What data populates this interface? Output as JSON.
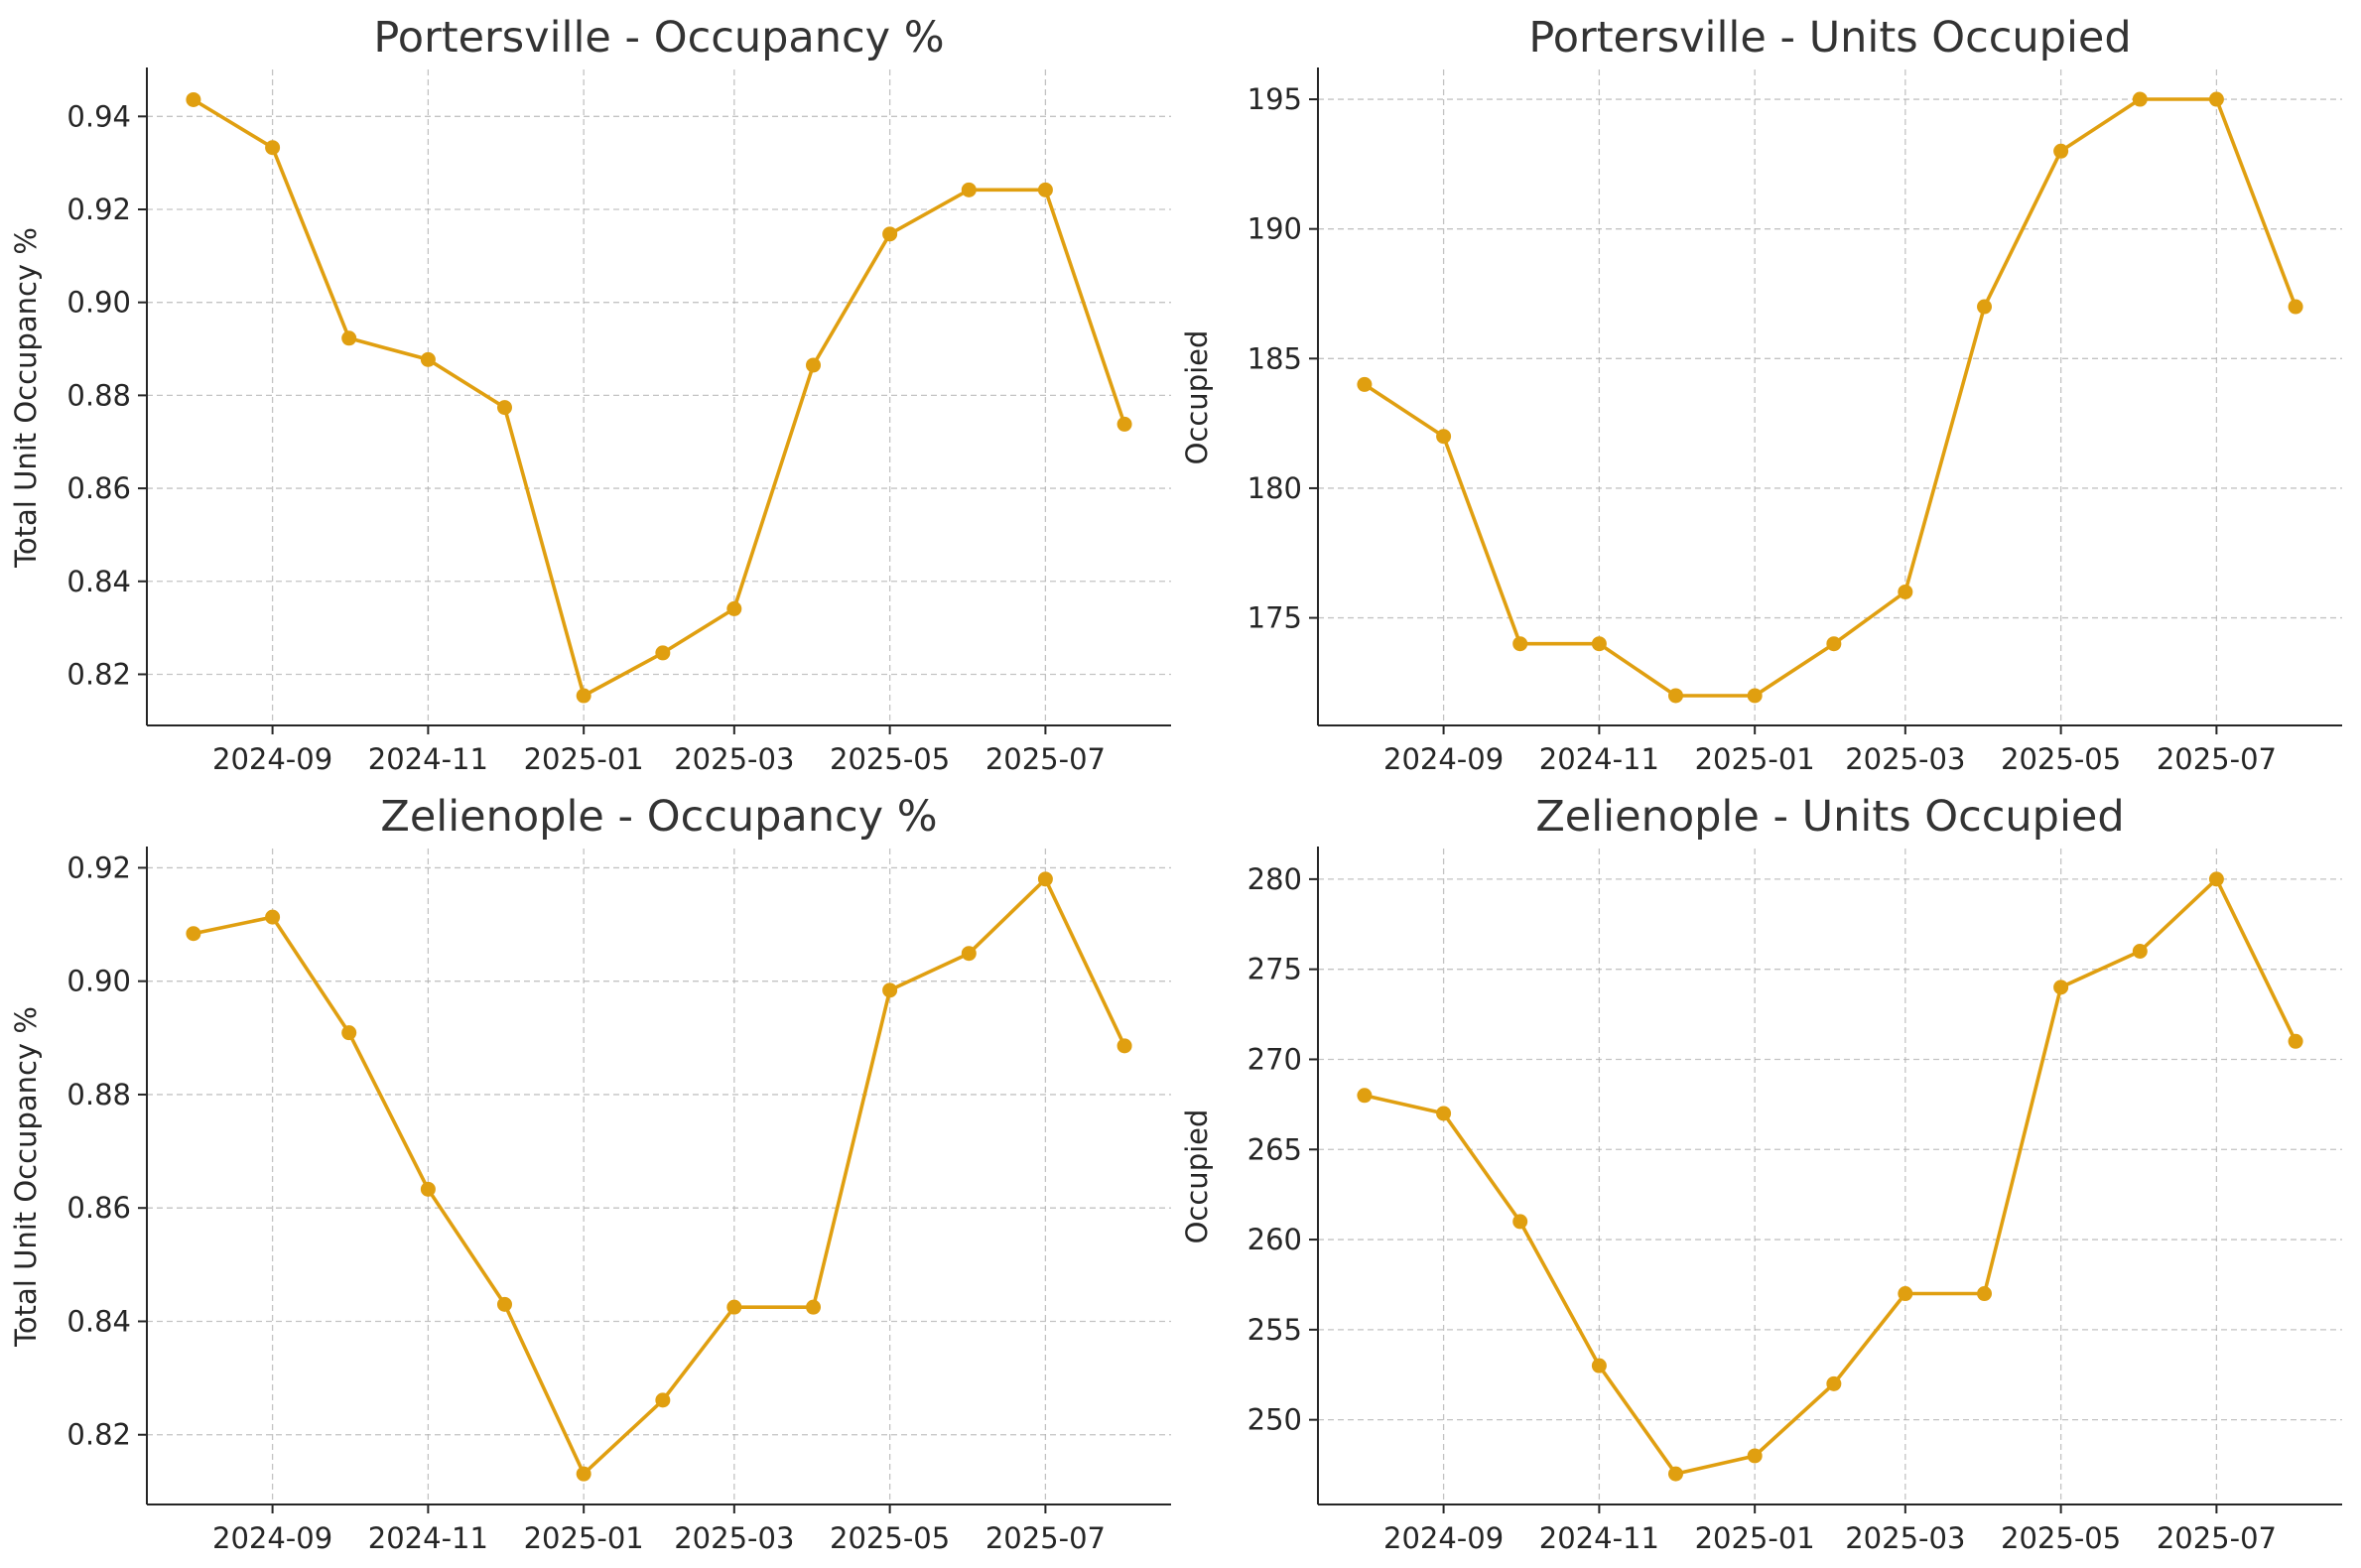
{
  "colors": {
    "series": "#E09F10",
    "text": "#262626",
    "title": "#333333",
    "grid": "#b0b0b0"
  },
  "chart_data": [
    {
      "type": "line",
      "title": "Portersville - Occupancy %",
      "xlabel": "",
      "ylabel": "Total Unit Occupancy %",
      "x": [
        "2024-08-01",
        "2024-09-01",
        "2024-10-01",
        "2024-11-01",
        "2024-12-01",
        "2025-01-01",
        "2025-02-01",
        "2025-03-01",
        "2025-04-01",
        "2025-05-01",
        "2025-06-01",
        "2025-07-01",
        "2025-08-01"
      ],
      "xticks": [
        "2024-09",
        "2024-11",
        "2025-01",
        "2025-03",
        "2025-05",
        "2025-07"
      ],
      "series": [
        {
          "values": [
            0.9436,
            0.9333,
            0.8923,
            0.8877,
            0.8774,
            0.8154,
            0.8246,
            0.8341,
            0.8865,
            0.9147,
            0.9242,
            0.9242,
            0.8738
          ]
        }
      ],
      "yticks": [
        "0.82",
        "0.84",
        "0.86",
        "0.88",
        "0.90",
        "0.92",
        "0.94"
      ],
      "ylim": [
        0.809,
        0.9501
      ],
      "grid": true
    },
    {
      "type": "line",
      "title": "Portersville - Units Occupied",
      "xlabel": "",
      "ylabel": "Occupied",
      "x": [
        "2024-08-01",
        "2024-09-01",
        "2024-10-01",
        "2024-11-01",
        "2024-12-01",
        "2025-01-01",
        "2025-02-01",
        "2025-03-01",
        "2025-04-01",
        "2025-05-01",
        "2025-06-01",
        "2025-07-01",
        "2025-08-01"
      ],
      "xticks": [
        "2024-09",
        "2024-11",
        "2025-01",
        "2025-03",
        "2025-05",
        "2025-07"
      ],
      "series": [
        {
          "values": [
            184,
            182,
            174,
            174,
            172,
            172,
            174,
            176,
            187,
            193,
            195,
            195,
            187
          ]
        }
      ],
      "yticks": [
        "175",
        "180",
        "185",
        "190",
        "195"
      ],
      "ylim": [
        170.85,
        196.15
      ],
      "grid": true
    },
    {
      "type": "line",
      "title": "Zelienople - Occupancy %",
      "xlabel": "",
      "ylabel": "Total Unit Occupancy %",
      "x": [
        "2024-08-01",
        "2024-09-01",
        "2024-10-01",
        "2024-11-01",
        "2024-12-01",
        "2025-01-01",
        "2025-02-01",
        "2025-03-01",
        "2025-04-01",
        "2025-05-01",
        "2025-06-01",
        "2025-07-01",
        "2025-08-01"
      ],
      "xticks": [
        "2024-09",
        "2024-11",
        "2025-01",
        "2025-03",
        "2025-05",
        "2025-07"
      ],
      "series": [
        {
          "values": [
            0.9084,
            0.9113,
            0.8909,
            0.8633,
            0.843,
            0.8131,
            0.8261,
            0.8425,
            0.8425,
            0.8984,
            0.9049,
            0.918,
            0.8886
          ]
        }
      ],
      "yticks": [
        "0.82",
        "0.84",
        "0.86",
        "0.88",
        "0.90",
        "0.92"
      ],
      "ylim": [
        0.8077,
        0.9234
      ],
      "grid": true
    },
    {
      "type": "line",
      "title": "Zelienople - Units Occupied",
      "xlabel": "",
      "ylabel": "Occupied",
      "x": [
        "2024-08-01",
        "2024-09-01",
        "2024-10-01",
        "2024-11-01",
        "2024-12-01",
        "2025-01-01",
        "2025-02-01",
        "2025-03-01",
        "2025-04-01",
        "2025-05-01",
        "2025-06-01",
        "2025-07-01",
        "2025-08-01"
      ],
      "xticks": [
        "2024-09",
        "2024-11",
        "2025-01",
        "2025-03",
        "2025-05",
        "2025-07"
      ],
      "series": [
        {
          "values": [
            268,
            267,
            261,
            253,
            247,
            248,
            252,
            257,
            257,
            274,
            276,
            280,
            271
          ]
        }
      ],
      "yticks": [
        "250",
        "255",
        "260",
        "265",
        "270",
        "275",
        "280"
      ],
      "ylim": [
        245.3,
        281.7
      ],
      "grid": true
    }
  ]
}
